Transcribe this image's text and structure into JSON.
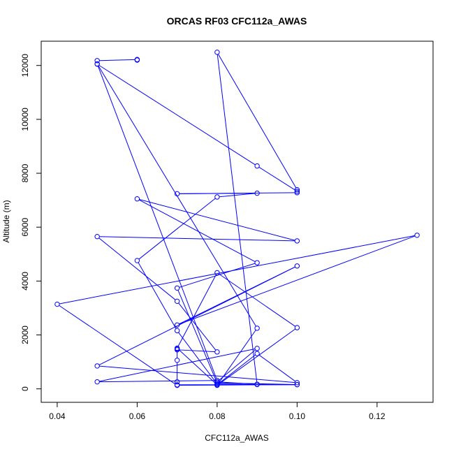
{
  "chart_data": {
    "type": "line",
    "title": "ORCAS RF03 CFC112a_AWAS",
    "xlabel": "CFC112a_AWAS",
    "ylabel": "Altitude (m)",
    "xlim": [
      0.036,
      0.134
    ],
    "ylim": [
      -500,
      12900
    ],
    "x_ticks": [
      "0.04",
      "0.06",
      "0.08",
      "0.10",
      "0.12"
    ],
    "y_ticks": [
      "0",
      "2000",
      "4000",
      "6000",
      "8000",
      "10000",
      "12000"
    ],
    "grid": false,
    "legend": "none",
    "series": [
      {
        "color": "#0000ff",
        "marker": "open-circle",
        "points": [
          [
            0.06,
            12200
          ],
          [
            0.06,
            12220
          ],
          [
            0.05,
            12180
          ],
          [
            0.05,
            12050
          ],
          [
            0.09,
            8270
          ],
          [
            0.1,
            7330
          ],
          [
            0.1,
            7280
          ],
          [
            0.07,
            7240
          ],
          [
            0.09,
            7260
          ],
          [
            0.08,
            7120
          ],
          [
            0.06,
            4760
          ],
          [
            0.07,
            2160
          ],
          [
            0.08,
            180
          ],
          [
            0.09,
            160
          ],
          [
            0.1,
            155
          ],
          [
            0.07,
            150
          ],
          [
            0.07,
            260
          ],
          [
            0.07,
            1060
          ],
          [
            0.07,
            1480
          ],
          [
            0.07,
            1450
          ],
          [
            0.08,
            1370
          ],
          [
            0.07,
            3250
          ],
          [
            0.05,
            5650
          ],
          [
            0.1,
            5490
          ],
          [
            0.06,
            7050
          ],
          [
            0.09,
            4680
          ],
          [
            0.07,
            3740
          ],
          [
            0.08,
            220
          ],
          [
            0.1,
            160
          ],
          [
            0.07,
            130
          ],
          [
            0.04,
            3140
          ],
          [
            0.13,
            5700
          ],
          [
            0.07,
            2370
          ],
          [
            0.1,
            4560
          ],
          [
            0.05,
            850
          ],
          [
            0.1,
            230
          ],
          [
            0.09,
            1310
          ],
          [
            0.08,
            150
          ],
          [
            0.07,
            1510
          ],
          [
            0.08,
            4310
          ],
          [
            0.1,
            2270
          ],
          [
            0.08,
            130
          ],
          [
            0.09,
            2250
          ],
          [
            0.05,
            12060
          ],
          [
            0.08,
            310
          ],
          [
            0.05,
            260
          ],
          [
            0.09,
            1500
          ],
          [
            0.08,
            260
          ],
          [
            0.09,
            170
          ],
          [
            0.08,
            12490
          ],
          [
            0.1,
            7390
          ]
        ]
      }
    ]
  }
}
